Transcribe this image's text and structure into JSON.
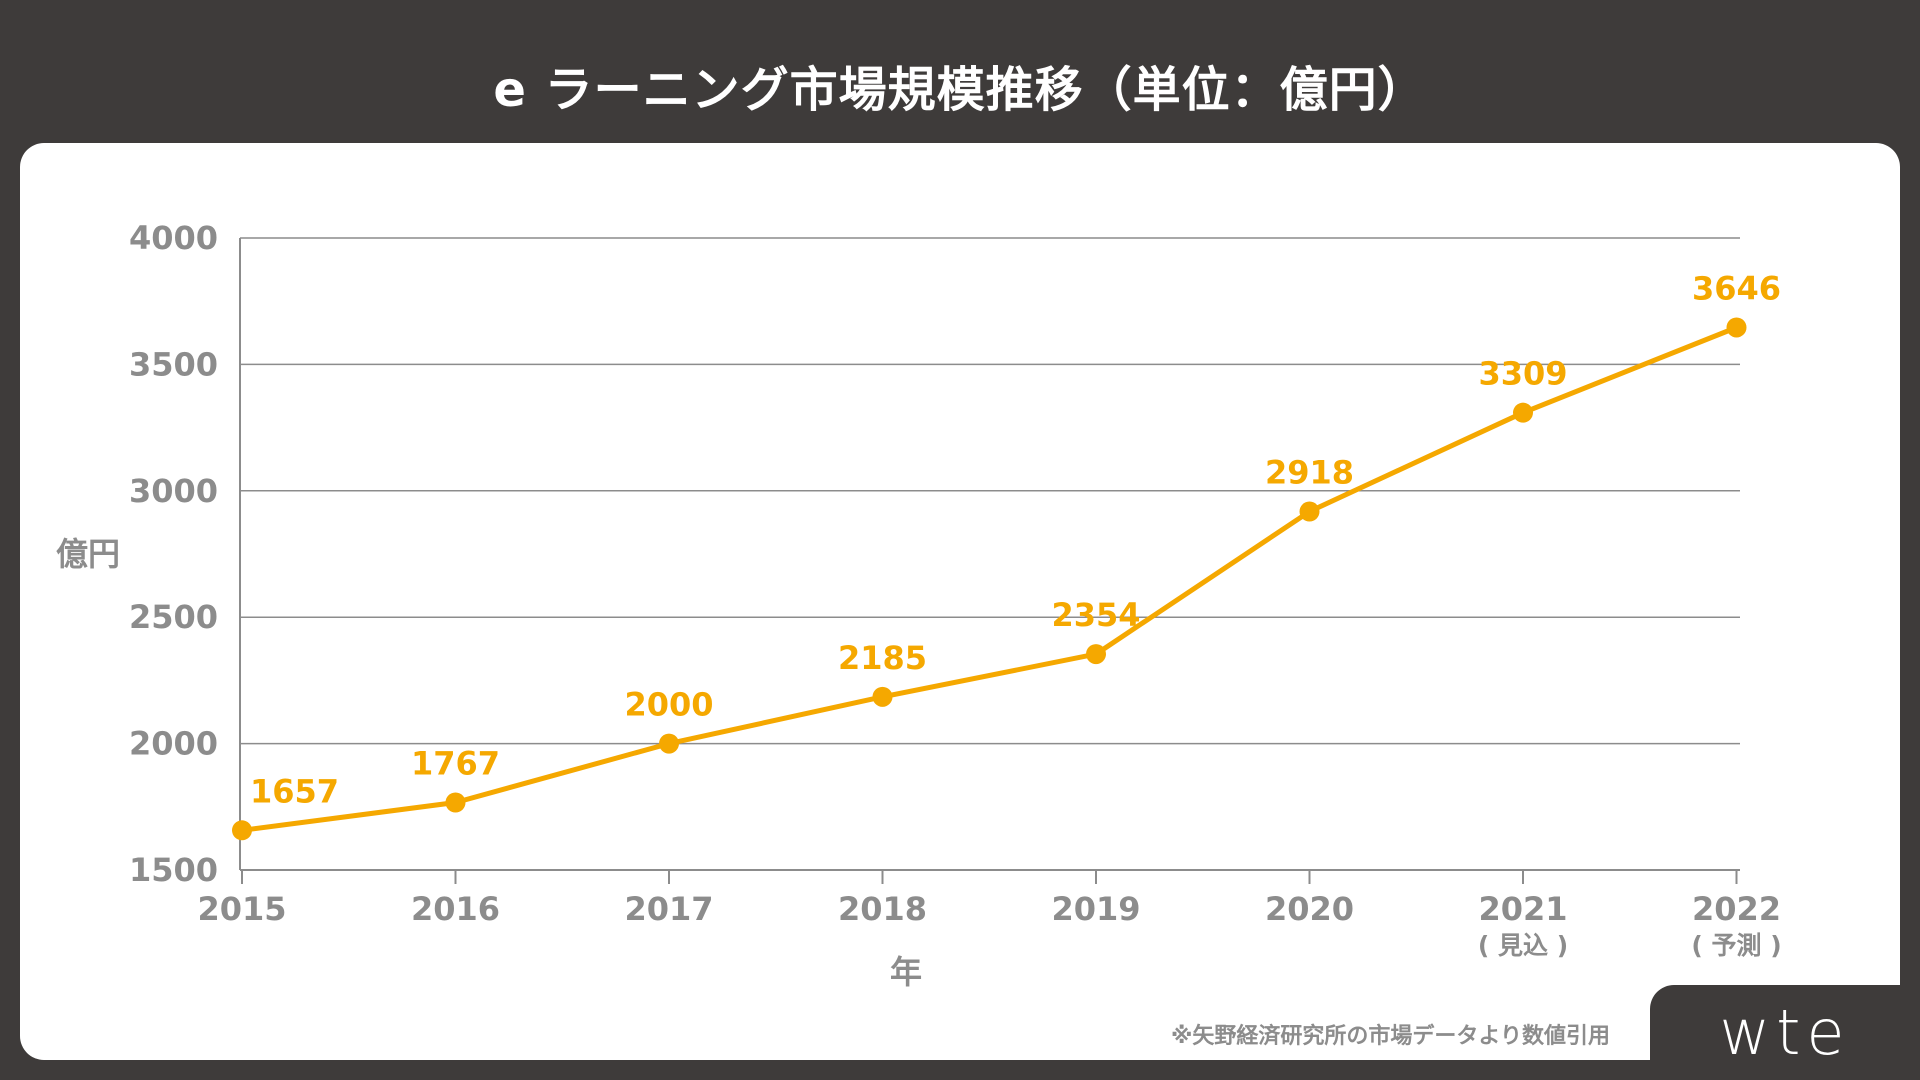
{
  "header": {
    "title": "e ラーニング市場規模推移（単位：億円）"
  },
  "footer": {
    "source_note": "※矢野経済研究所の市場データより数値引用",
    "brand": "wte"
  },
  "colors": {
    "accent": "#f5a800",
    "grid": "#8c8c8c",
    "axis_text": "#8c8c8c",
    "background": "#3e3b3a"
  },
  "chart_data": {
    "type": "line",
    "title": "e ラーニング市場規模推移（単位：億円）",
    "xlabel": "年",
    "ylabel": "億円",
    "categories": [
      "2015",
      "2016",
      "2017",
      "2018",
      "2019",
      "2020",
      "2021",
      "2022"
    ],
    "category_sublabels": [
      "",
      "",
      "",
      "",
      "",
      "",
      "( 見込 )",
      "( 予測 )"
    ],
    "values": [
      1657,
      1767,
      2000,
      2185,
      2354,
      2918,
      3309,
      3646
    ],
    "ylim": [
      1500,
      4000
    ],
    "yticks": [
      1500,
      2000,
      2500,
      3000,
      3500,
      4000
    ],
    "grid": true
  }
}
